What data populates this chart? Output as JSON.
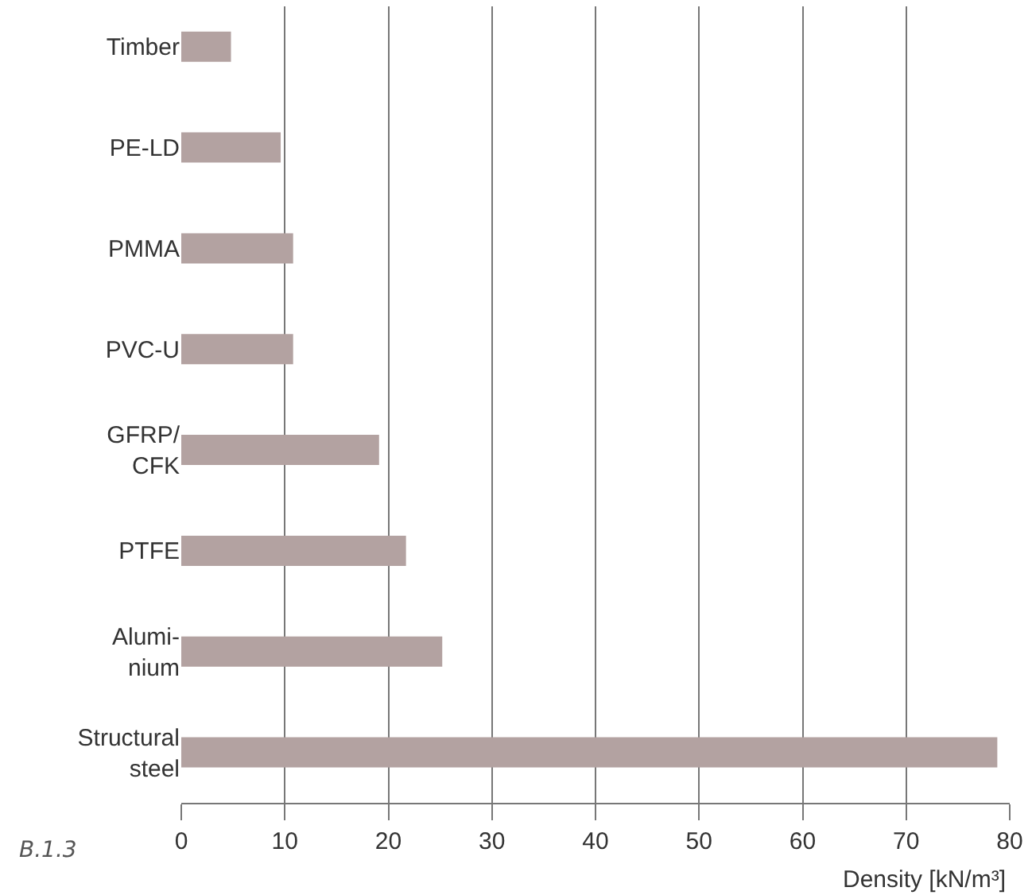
{
  "chart_data": {
    "type": "bar",
    "orientation": "horizontal",
    "categories": [
      "Timber",
      "PE-LD",
      "PMMA",
      "PVC-U",
      "GFRP/\nCFK",
      "PTFE",
      "Alumi-\nnium",
      "Structural\nsteel"
    ],
    "values": [
      4.8,
      9.6,
      10.8,
      10.8,
      19.1,
      21.7,
      25.2,
      78.8
    ],
    "color": "#b3a2a1",
    "xlabel": "Density [kN/m³]",
    "xlim": [
      0,
      80
    ],
    "xticks": [
      0,
      10,
      20,
      30,
      40,
      50,
      60,
      70,
      80
    ],
    "grid": "x",
    "legend": false,
    "annotations": [
      "B.1.3"
    ]
  }
}
